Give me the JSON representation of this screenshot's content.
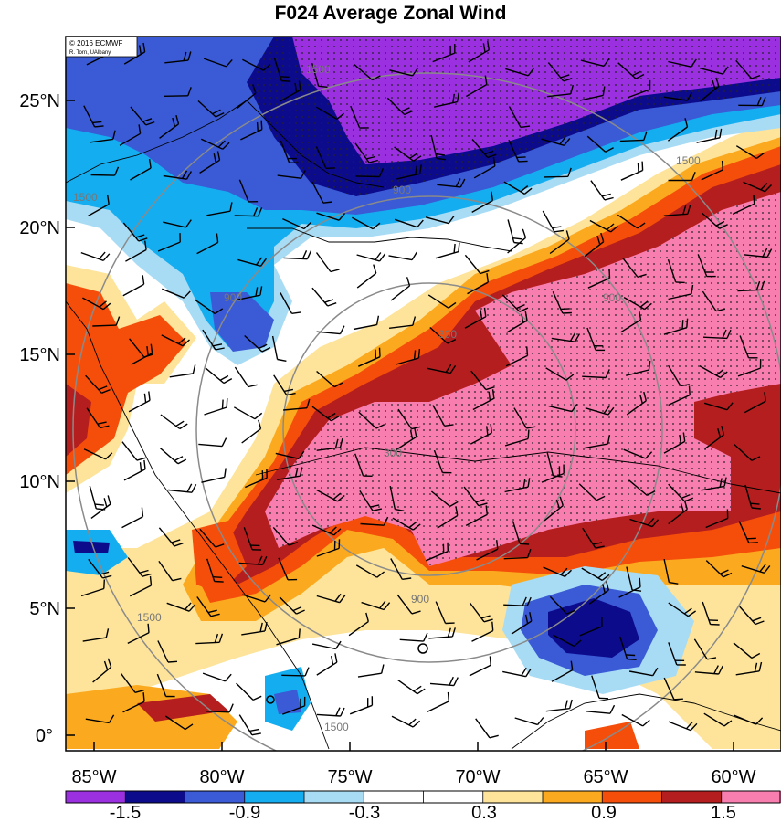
{
  "title": "F024 Average Zonal Wind",
  "credit": {
    "line1": "© 2016 ECMWF",
    "line2": "R. Torn, UAlbany"
  },
  "lat_labels": [
    "25°N",
    "20°N",
    "15°N",
    "10°N",
    "5°N",
    "0°"
  ],
  "lon_labels": [
    "85°W",
    "80°W",
    "75°W",
    "70°W",
    "65°W",
    "60°W"
  ],
  "contour_labels": [
    "1500",
    "1500",
    "1500",
    "1500",
    "1500",
    "900",
    "900",
    "900",
    "900",
    "300",
    "300"
  ],
  "colorbar": {
    "colors": [
      "#9b30e0",
      "#0b0b8c",
      "#3a5ad6",
      "#14aef0",
      "#a8dcf5",
      "#ffffff",
      "#ffffff",
      "#fde49a",
      "#fbaa1f",
      "#f54e0a",
      "#b51e1e",
      "#f87eb0"
    ],
    "labels": [
      "-1.5",
      "-0.9",
      "-0.3",
      "0.3",
      "0.9",
      "1.5"
    ]
  }
}
